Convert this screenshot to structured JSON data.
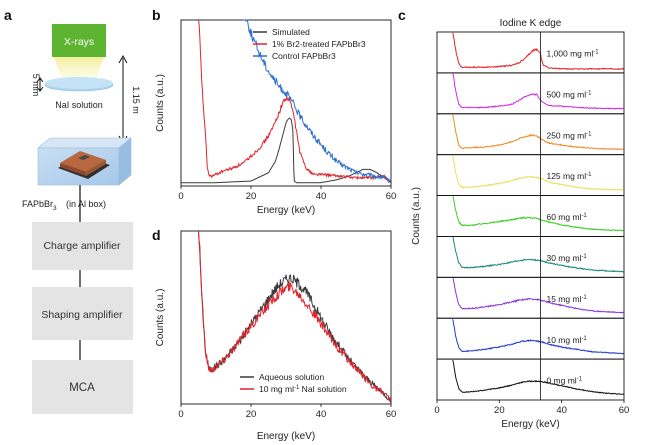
{
  "panel_letters": {
    "a": "a",
    "b": "b",
    "c": "c",
    "d": "d"
  },
  "panel_a": {
    "xray_label": "X-rays",
    "solution_label": "NaI solution",
    "gap_label": "5 mm",
    "distance_label": "1.15 m",
    "detector_label": "FAPbBr",
    "detector_sub": "3",
    "box_label": "(in Al box)",
    "chain": [
      "Charge amplifier",
      "Shaping amplifier",
      "MCA"
    ],
    "colors": {
      "xray": "#5cb431",
      "beam": "#f6f1a2",
      "solution": "#a9d6ef",
      "chain_box": "#e4e4e4"
    }
  },
  "chart_data": [
    {
      "id": "b",
      "type": "line",
      "title": "",
      "xlabel": "Energy (keV)",
      "ylabel": "Counts (a.u.)",
      "xlim": [
        0,
        60
      ],
      "ylim": [
        0,
        1
      ],
      "xticks": [
        0,
        20,
        40,
        60
      ],
      "grid": false,
      "legend_position": "top-right",
      "series": [
        {
          "name": "Simulated",
          "color": "#3a3a3a",
          "noise": 0,
          "x": [
            0,
            10,
            20,
            25,
            27,
            28,
            29,
            30,
            30.5,
            31,
            31.5,
            32,
            32.3,
            33,
            35,
            40,
            45,
            48,
            50,
            52,
            54,
            56,
            58,
            60
          ],
          "y": [
            0.02,
            0.02,
            0.03,
            0.08,
            0.15,
            0.22,
            0.3,
            0.38,
            0.4,
            0.41,
            0.4,
            0.33,
            0.03,
            0.02,
            0.02,
            0.02,
            0.04,
            0.06,
            0.08,
            0.1,
            0.1,
            0.08,
            0.05,
            0.02
          ]
        },
        {
          "name": "1% Br2-treated FAPbBr3",
          "color": "#e0252c",
          "noise": 0.012,
          "x": [
            5,
            6,
            7,
            7.5,
            8,
            9,
            10,
            12,
            15,
            18,
            20,
            22,
            24,
            26,
            28,
            29,
            30,
            31,
            32,
            33,
            34,
            36,
            38,
            40,
            45,
            50,
            55,
            58,
            60
          ],
          "y": [
            1.05,
            0.6,
            0.3,
            0.12,
            0.06,
            0.06,
            0.07,
            0.09,
            0.11,
            0.14,
            0.18,
            0.22,
            0.27,
            0.34,
            0.44,
            0.5,
            0.53,
            0.52,
            0.45,
            0.33,
            0.2,
            0.1,
            0.07,
            0.07,
            0.06,
            0.05,
            0.05,
            0.06,
            0.02
          ]
        },
        {
          "name": "Control FAPbBr3",
          "color": "#2c6fd0",
          "noise": 0.02,
          "x": [
            18,
            20,
            22,
            24,
            26,
            28,
            30,
            32,
            34,
            36,
            38,
            40,
            42,
            45,
            50,
            55,
            58,
            60
          ],
          "y": [
            1.05,
            0.92,
            0.82,
            0.73,
            0.66,
            0.6,
            0.56,
            0.5,
            0.42,
            0.36,
            0.3,
            0.25,
            0.2,
            0.14,
            0.08,
            0.06,
            0.05,
            0.03
          ]
        }
      ]
    },
    {
      "id": "c",
      "type": "line",
      "title": "Iodine K edge",
      "xlabel": "Energy (keV)",
      "ylabel": "Counts (a.u.)",
      "xlim": [
        0,
        60
      ],
      "xticks": [
        0,
        20,
        40,
        60
      ],
      "edge_keV": 33.2,
      "grid": false,
      "series": [
        {
          "name": "1,000 mg ml",
          "unit_sup": "-1",
          "color": "#e3262b",
          "noise": 0.025,
          "x": [
            5,
            6,
            7,
            8,
            10,
            15,
            20,
            24,
            26,
            28,
            30,
            31,
            32,
            33,
            33.5,
            34,
            36,
            40,
            45,
            50,
            55,
            60
          ],
          "y": [
            1.2,
            0.6,
            0.18,
            0.08,
            0.08,
            0.08,
            0.1,
            0.14,
            0.2,
            0.32,
            0.52,
            0.6,
            0.62,
            0.55,
            0.35,
            0.15,
            0.06,
            0.03,
            0.03,
            0.03,
            0.03,
            0.03
          ]
        },
        {
          "name": "500 mg ml",
          "unit_sup": "-1",
          "color": "#d22ce0",
          "noise": 0.018,
          "x": [
            5,
            6,
            7,
            8,
            10,
            15,
            20,
            24,
            26,
            28,
            30,
            32,
            33,
            34,
            36,
            40,
            45,
            50,
            55,
            60
          ],
          "y": [
            1.2,
            0.6,
            0.2,
            0.1,
            0.1,
            0.1,
            0.14,
            0.2,
            0.3,
            0.42,
            0.5,
            0.5,
            0.35,
            0.25,
            0.16,
            0.14,
            0.1,
            0.08,
            0.07,
            0.07
          ]
        },
        {
          "name": "250 mg ml",
          "unit_sup": "-1",
          "color": "#ef8a25",
          "noise": 0.018,
          "x": [
            5,
            6,
            7,
            8,
            10,
            15,
            20,
            24,
            26,
            28,
            30,
            32,
            33,
            34,
            36,
            40,
            45,
            50,
            55,
            60
          ],
          "y": [
            1.2,
            0.6,
            0.2,
            0.1,
            0.12,
            0.14,
            0.2,
            0.3,
            0.38,
            0.45,
            0.5,
            0.48,
            0.42,
            0.35,
            0.26,
            0.2,
            0.14,
            0.1,
            0.08,
            0.08
          ]
        },
        {
          "name": "125 mg ml",
          "unit_sup": "-1",
          "color": "#ecdd5f",
          "noise": 0.018,
          "x": [
            5,
            6,
            7,
            8,
            10,
            15,
            20,
            24,
            26,
            28,
            30,
            32,
            34,
            36,
            40,
            45,
            50,
            55,
            60
          ],
          "y": [
            1.2,
            0.6,
            0.25,
            0.15,
            0.16,
            0.2,
            0.28,
            0.36,
            0.42,
            0.46,
            0.48,
            0.46,
            0.4,
            0.32,
            0.24,
            0.16,
            0.11,
            0.09,
            0.08
          ]
        },
        {
          "name": "60 mg ml",
          "unit_sup": "-1",
          "color": "#3ccd23",
          "noise": 0.018,
          "x": [
            5,
            6,
            7,
            8,
            10,
            15,
            20,
            24,
            26,
            28,
            30,
            32,
            34,
            36,
            40,
            45,
            50,
            55,
            60
          ],
          "y": [
            1.2,
            0.7,
            0.35,
            0.25,
            0.24,
            0.3,
            0.36,
            0.42,
            0.46,
            0.48,
            0.48,
            0.45,
            0.4,
            0.34,
            0.26,
            0.18,
            0.13,
            0.1,
            0.09
          ]
        },
        {
          "name": "30 mg ml",
          "unit_sup": "-1",
          "color": "#17877b",
          "noise": 0.018,
          "x": [
            5,
            6,
            7,
            8,
            10,
            15,
            20,
            24,
            26,
            28,
            30,
            32,
            34,
            36,
            40,
            45,
            50,
            55,
            60
          ],
          "y": [
            1.2,
            0.7,
            0.35,
            0.22,
            0.2,
            0.24,
            0.3,
            0.37,
            0.41,
            0.44,
            0.45,
            0.43,
            0.4,
            0.35,
            0.27,
            0.19,
            0.13,
            0.1,
            0.08
          ]
        },
        {
          "name": "15 mg ml",
          "unit_sup": "-1",
          "color": "#8a33da",
          "noise": 0.018,
          "x": [
            5,
            6,
            7,
            8,
            10,
            15,
            20,
            24,
            26,
            28,
            30,
            32,
            34,
            36,
            40,
            45,
            50,
            55,
            60
          ],
          "y": [
            1.2,
            0.7,
            0.32,
            0.2,
            0.2,
            0.25,
            0.32,
            0.4,
            0.45,
            0.48,
            0.5,
            0.48,
            0.44,
            0.38,
            0.3,
            0.2,
            0.13,
            0.1,
            0.08
          ]
        },
        {
          "name": "10 mg ml",
          "unit_sup": "-1",
          "color": "#1f39cc",
          "noise": 0.018,
          "x": [
            5,
            6,
            7,
            8,
            10,
            15,
            20,
            24,
            26,
            28,
            30,
            32,
            34,
            36,
            40,
            45,
            50,
            55,
            60
          ],
          "y": [
            1.2,
            0.6,
            0.25,
            0.15,
            0.15,
            0.2,
            0.28,
            0.36,
            0.42,
            0.46,
            0.48,
            0.46,
            0.42,
            0.36,
            0.28,
            0.2,
            0.13,
            0.1,
            0.08
          ]
        },
        {
          "name": "0 mg ml",
          "unit_sup": "-1",
          "color": "#111111",
          "noise": 0.015,
          "x": [
            5,
            6,
            7,
            8,
            10,
            15,
            20,
            24,
            26,
            28,
            30,
            32,
            34,
            36,
            40,
            45,
            50,
            55,
            60
          ],
          "y": [
            1.2,
            0.6,
            0.25,
            0.15,
            0.15,
            0.2,
            0.28,
            0.36,
            0.42,
            0.46,
            0.48,
            0.48,
            0.46,
            0.42,
            0.34,
            0.24,
            0.16,
            0.11,
            0.08
          ]
        }
      ]
    },
    {
      "id": "d",
      "type": "line",
      "title": "",
      "xlabel": "Energy (keV)",
      "ylabel": "Counts (a.u.)",
      "xlim": [
        0,
        60
      ],
      "ylim": [
        0,
        1
      ],
      "xticks": [
        0,
        20,
        40,
        60
      ],
      "grid": false,
      "legend_position": "bottom-left",
      "series": [
        {
          "name": "Aqueous solution",
          "color": "#3a3a3a",
          "noise": 0.025,
          "x": [
            5,
            6,
            7,
            8,
            9,
            10,
            12,
            15,
            18,
            20,
            22,
            24,
            26,
            28,
            30,
            31,
            32,
            34,
            36,
            38,
            40,
            42,
            45,
            48,
            50,
            52,
            55,
            58,
            60
          ],
          "y": [
            1.05,
            0.6,
            0.3,
            0.2,
            0.2,
            0.22,
            0.25,
            0.32,
            0.4,
            0.46,
            0.52,
            0.58,
            0.64,
            0.69,
            0.72,
            0.73,
            0.72,
            0.69,
            0.64,
            0.57,
            0.5,
            0.43,
            0.34,
            0.26,
            0.21,
            0.17,
            0.11,
            0.06,
            0.02
          ]
        },
        {
          "name": "10 mg ml",
          "name_sup": "-1",
          "name_rest": " NaI solution",
          "color": "#e0252c",
          "noise": 0.025,
          "x": [
            5,
            6,
            7,
            8,
            9,
            10,
            12,
            15,
            18,
            20,
            22,
            24,
            26,
            28,
            30,
            31,
            32,
            34,
            36,
            38,
            40,
            42,
            45,
            48,
            50,
            52,
            55,
            58,
            60
          ],
          "y": [
            1.05,
            0.6,
            0.3,
            0.2,
            0.2,
            0.22,
            0.25,
            0.32,
            0.4,
            0.45,
            0.5,
            0.55,
            0.6,
            0.64,
            0.67,
            0.68,
            0.67,
            0.63,
            0.58,
            0.52,
            0.46,
            0.4,
            0.32,
            0.25,
            0.2,
            0.16,
            0.1,
            0.06,
            0.02
          ]
        }
      ]
    }
  ]
}
